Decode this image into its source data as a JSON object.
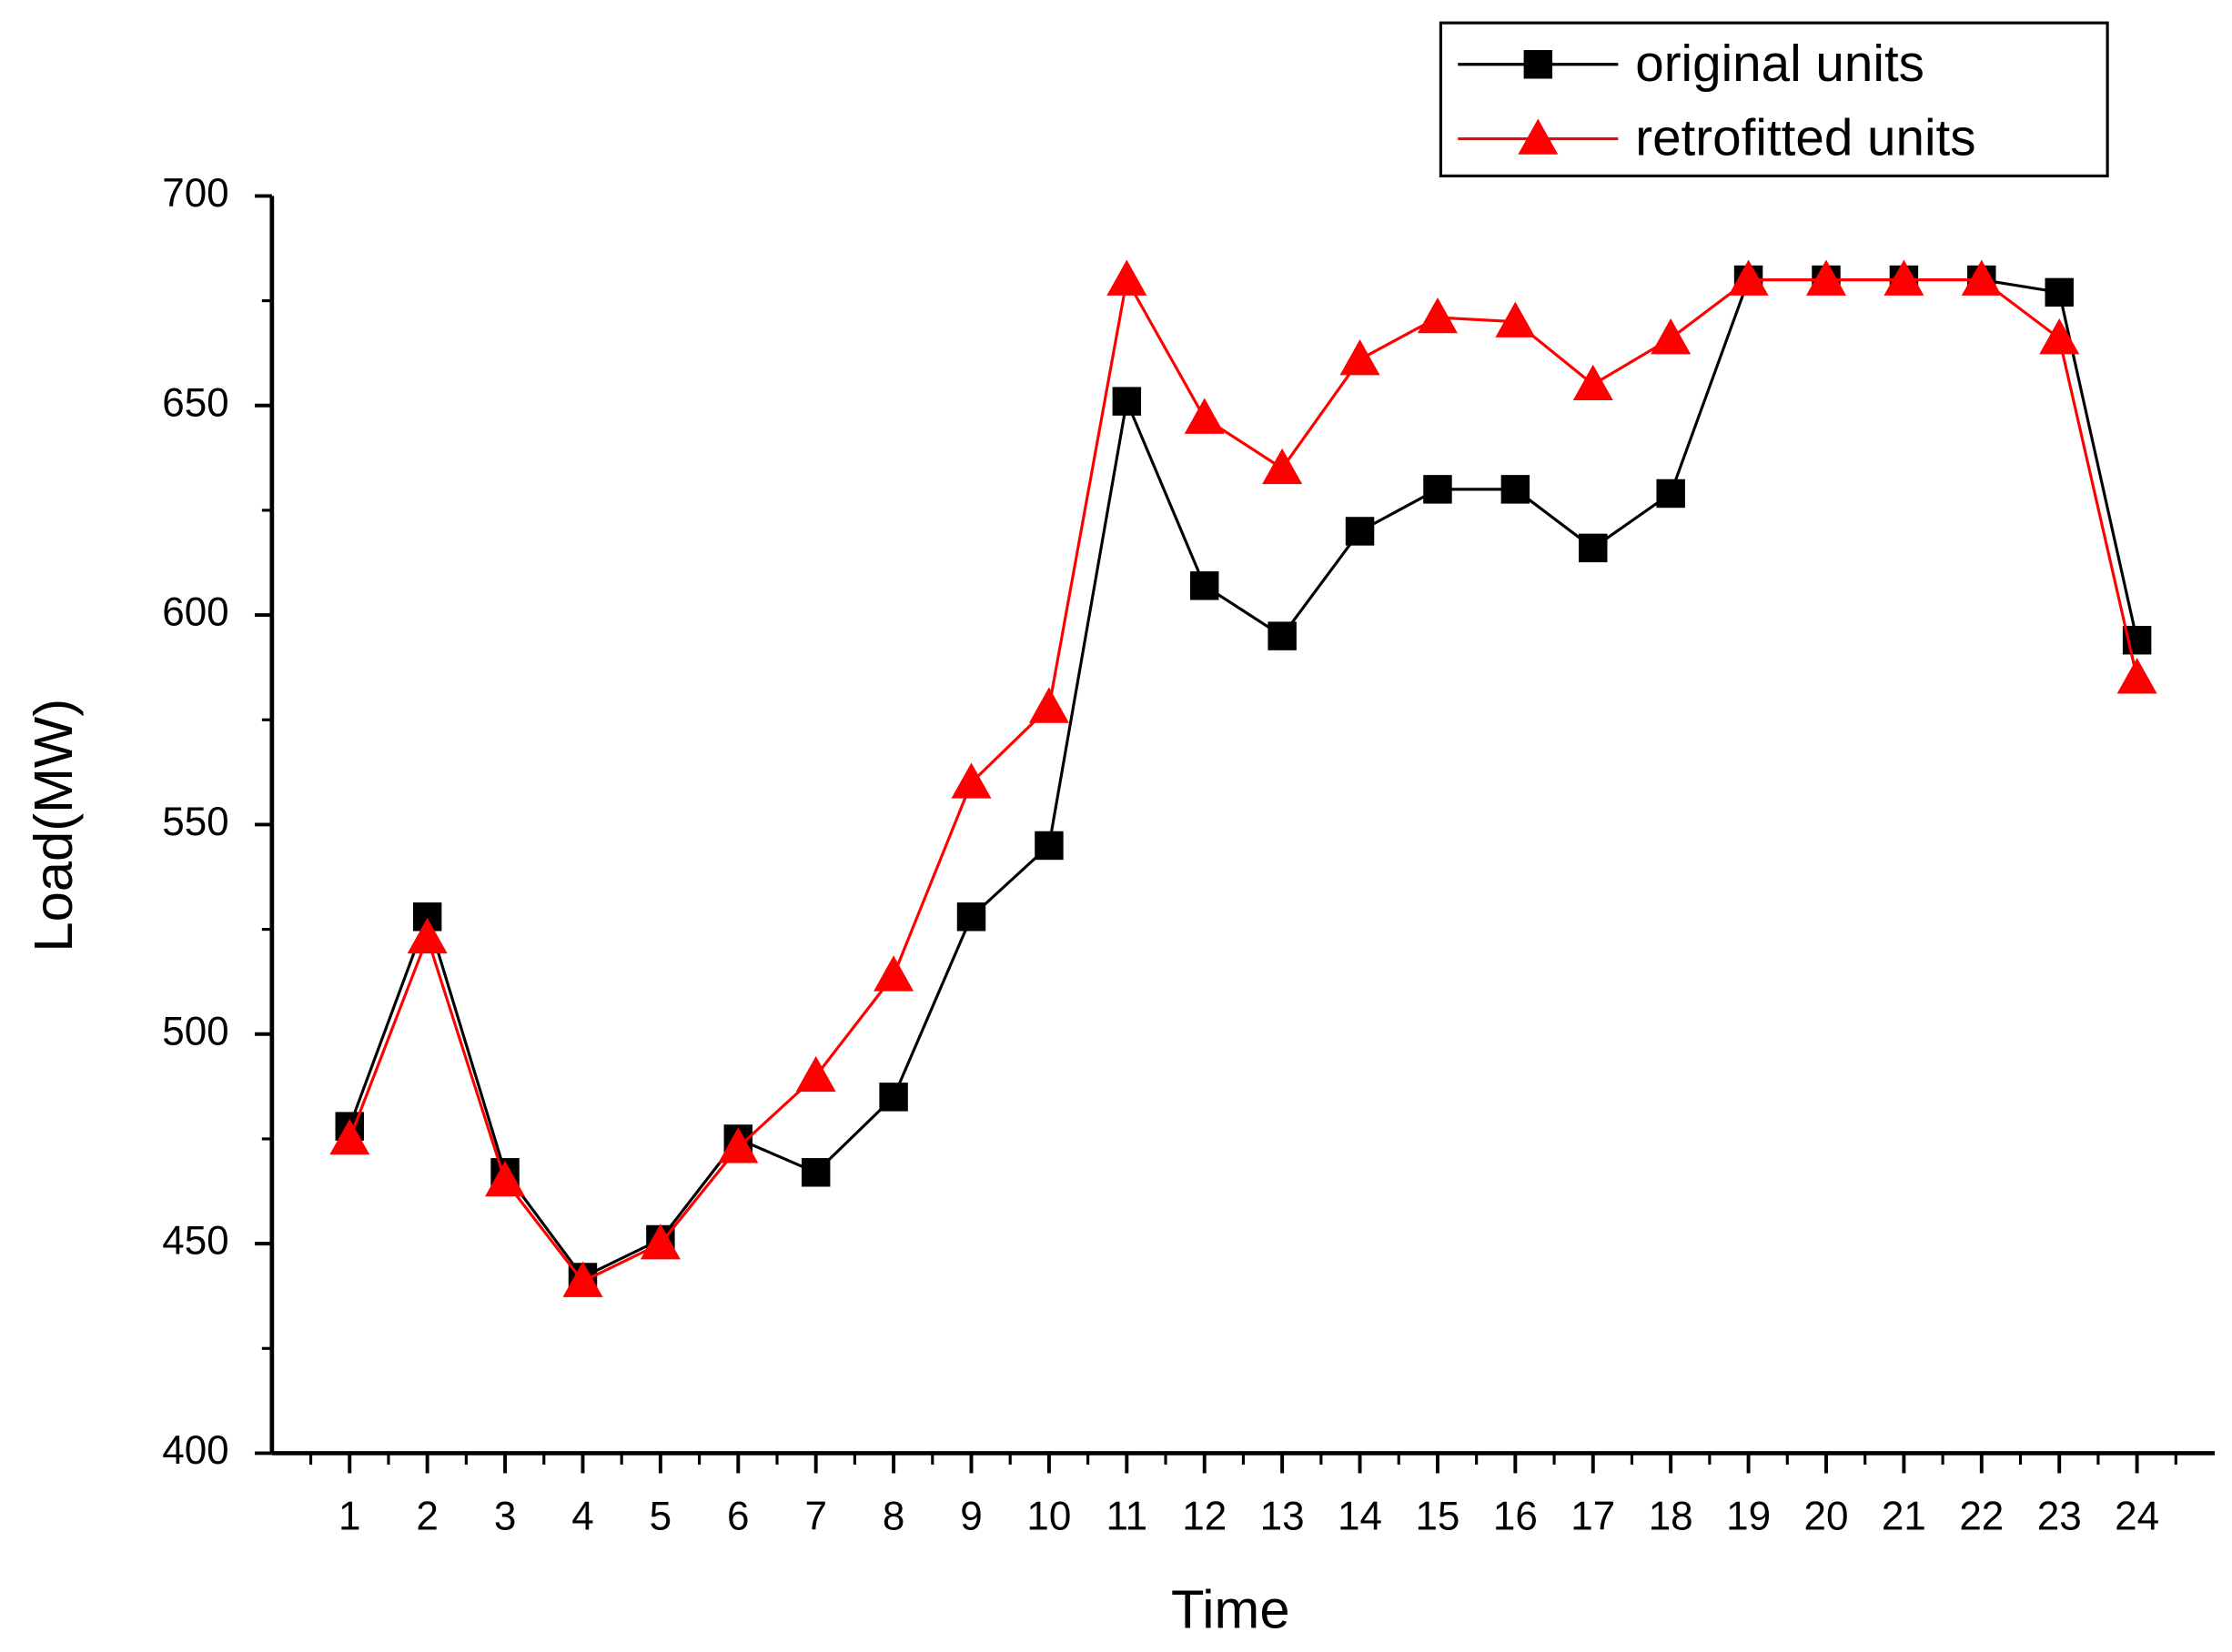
{
  "chart_data": {
    "type": "line",
    "x_label": "Time",
    "y_label": "Load(MW)",
    "x": [
      1,
      2,
      3,
      4,
      5,
      6,
      7,
      8,
      9,
      10,
      11,
      12,
      13,
      14,
      15,
      16,
      17,
      18,
      19,
      20,
      21,
      22,
      23,
      24
    ],
    "series": [
      {
        "name": "original units",
        "color": "#000000",
        "marker": "square",
        "values": [
          478,
          528,
          467,
          442,
          451,
          475,
          467,
          485,
          528,
          545,
          651,
          607,
          595,
          620,
          630,
          630,
          616,
          629,
          680,
          680,
          680,
          680,
          677,
          594
        ]
      },
      {
        "name": "retrofitted units",
        "color": "#ff0000",
        "marker": "triangle",
        "values": [
          475,
          523,
          465,
          441,
          450,
          473,
          490,
          514,
          560,
          578,
          680,
          647,
          635,
          661,
          671,
          670,
          655,
          666,
          680,
          680,
          680,
          680,
          666,
          585
        ]
      }
    ],
    "xlim": [
      0,
      25
    ],
    "ylim": [
      400,
      700
    ],
    "xticks": [
      1,
      2,
      3,
      4,
      5,
      6,
      7,
      8,
      9,
      10,
      11,
      12,
      13,
      14,
      15,
      16,
      17,
      18,
      19,
      20,
      21,
      22,
      23,
      24
    ],
    "yticks": [
      400,
      450,
      500,
      550,
      600,
      650,
      700
    ],
    "grid": false,
    "legend": "upper right"
  }
}
